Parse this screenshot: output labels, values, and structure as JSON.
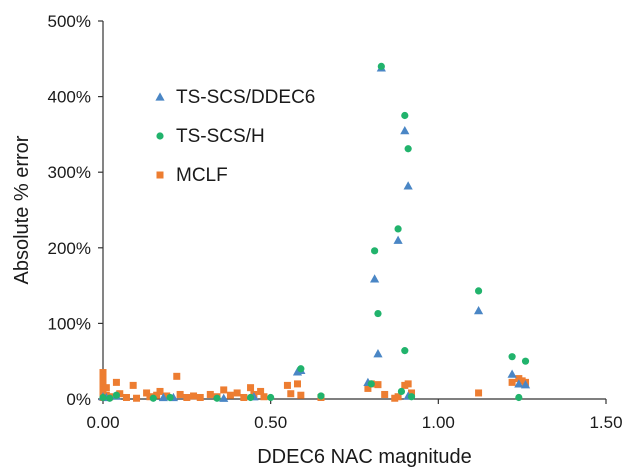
{
  "chart_data": {
    "type": "scatter",
    "xlabel": "DDEC6 NAC magnitude",
    "ylabel": "Absolute % error",
    "xlim": [
      0,
      1.5
    ],
    "ylim": [
      0,
      500
    ],
    "x_ticks": [
      0,
      0.5,
      1.0,
      1.5
    ],
    "x_tick_labels": [
      "0.00",
      "0.50",
      "1.00",
      "1.50"
    ],
    "y_ticks": [
      0,
      100,
      200,
      300,
      400,
      500
    ],
    "y_tick_labels": [
      "0%",
      "100%",
      "200%",
      "300%",
      "400%",
      "500%"
    ],
    "grid": false,
    "legend_position": "top-left",
    "series": [
      {
        "name": "TS-SCS/DDEC6",
        "marker": "triangle",
        "color": "#4a86c5",
        "points": [
          [
            0.0,
            3
          ],
          [
            0.01,
            2
          ],
          [
            0.04,
            4
          ],
          [
            0.18,
            2
          ],
          [
            0.21,
            2
          ],
          [
            0.36,
            1
          ],
          [
            0.45,
            3
          ],
          [
            0.58,
            36
          ],
          [
            0.59,
            38
          ],
          [
            0.79,
            22
          ],
          [
            0.81,
            159
          ],
          [
            0.82,
            60
          ],
          [
            0.83,
            438
          ],
          [
            0.88,
            210
          ],
          [
            0.9,
            355
          ],
          [
            0.91,
            282
          ],
          [
            0.91,
            4
          ],
          [
            1.12,
            117
          ],
          [
            1.22,
            33
          ],
          [
            1.24,
            20
          ],
          [
            1.26,
            19
          ]
        ]
      },
      {
        "name": "TS-SCS/H",
        "marker": "circle",
        "color": "#21b36c",
        "points": [
          [
            0.0,
            2
          ],
          [
            0.02,
            1
          ],
          [
            0.04,
            5
          ],
          [
            0.15,
            1
          ],
          [
            0.2,
            2
          ],
          [
            0.34,
            1
          ],
          [
            0.44,
            2
          ],
          [
            0.5,
            2
          ],
          [
            0.59,
            40
          ],
          [
            0.65,
            4
          ],
          [
            0.8,
            20
          ],
          [
            0.81,
            196
          ],
          [
            0.82,
            113
          ],
          [
            0.83,
            440
          ],
          [
            0.88,
            225
          ],
          [
            0.89,
            10
          ],
          [
            0.9,
            375
          ],
          [
            0.9,
            64
          ],
          [
            0.91,
            331
          ],
          [
            0.92,
            3
          ],
          [
            1.12,
            143
          ],
          [
            1.22,
            56
          ],
          [
            1.24,
            2
          ],
          [
            1.26,
            50
          ]
        ]
      },
      {
        "name": "MCLF",
        "marker": "square",
        "color": "#ed7d31",
        "points": [
          [
            0.0,
            35
          ],
          [
            0.0,
            28
          ],
          [
            0.0,
            20
          ],
          [
            0.0,
            12
          ],
          [
            0.0,
            6
          ],
          [
            0.0,
            2
          ],
          [
            0.01,
            15
          ],
          [
            0.01,
            5
          ],
          [
            0.02,
            3
          ],
          [
            0.04,
            22
          ],
          [
            0.05,
            7
          ],
          [
            0.07,
            2
          ],
          [
            0.09,
            18
          ],
          [
            0.1,
            1
          ],
          [
            0.13,
            8
          ],
          [
            0.14,
            3
          ],
          [
            0.16,
            5
          ],
          [
            0.17,
            10
          ],
          [
            0.19,
            4
          ],
          [
            0.22,
            30
          ],
          [
            0.23,
            6
          ],
          [
            0.25,
            2
          ],
          [
            0.27,
            4
          ],
          [
            0.29,
            2
          ],
          [
            0.32,
            6
          ],
          [
            0.34,
            3
          ],
          [
            0.36,
            12
          ],
          [
            0.38,
            5
          ],
          [
            0.4,
            8
          ],
          [
            0.42,
            2
          ],
          [
            0.44,
            15
          ],
          [
            0.45,
            6
          ],
          [
            0.47,
            10
          ],
          [
            0.48,
            3
          ],
          [
            0.55,
            18
          ],
          [
            0.56,
            7
          ],
          [
            0.58,
            20
          ],
          [
            0.59,
            5
          ],
          [
            0.65,
            2
          ],
          [
            0.79,
            14
          ],
          [
            0.8,
            20
          ],
          [
            0.82,
            19
          ],
          [
            0.84,
            6
          ],
          [
            0.87,
            1
          ],
          [
            0.88,
            3
          ],
          [
            0.9,
            18
          ],
          [
            0.91,
            20
          ],
          [
            0.92,
            8
          ],
          [
            1.12,
            8
          ],
          [
            1.22,
            22
          ],
          [
            1.24,
            27
          ],
          [
            1.25,
            24
          ],
          [
            1.26,
            22
          ]
        ]
      }
    ]
  }
}
